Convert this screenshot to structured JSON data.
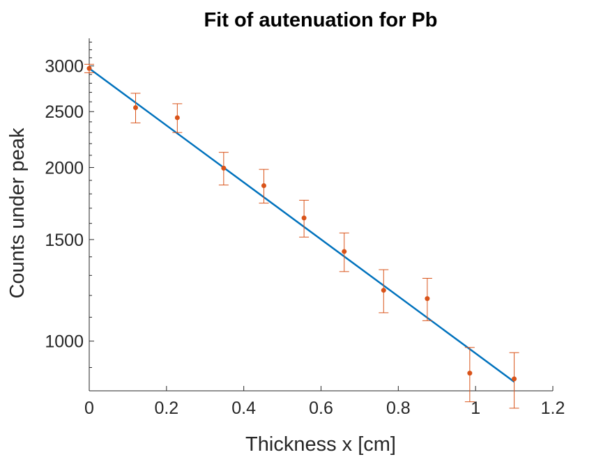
{
  "chart_data": {
    "type": "scatter",
    "title": "Fit of autenuation for Pb",
    "xlabel": "Thickness x [cm]",
    "ylabel": "Counts under peak",
    "xlim": [
      0,
      1.2
    ],
    "ylim": [
      820,
      3350
    ],
    "yscale": "log",
    "xticks": [
      "0",
      "0.2",
      "0.4",
      "0.6",
      "0.8",
      "1",
      "1.2"
    ],
    "xtick_values": [
      0,
      0.2,
      0.4,
      0.6,
      0.8,
      1,
      1.2
    ],
    "yticks": [
      "1000",
      "1500",
      "2000",
      "2500",
      "3000"
    ],
    "ytick_values": [
      1000,
      1500,
      2000,
      2500,
      3000
    ],
    "grid": false,
    "series": [
      {
        "kind": "errorbar",
        "color": "#D95319",
        "x": [
          0,
          0.12,
          0.228,
          0.348,
          0.452,
          0.556,
          0.66,
          0.762,
          0.875,
          0.985,
          1.1
        ],
        "y": [
          2970,
          2540,
          2440,
          1995,
          1860,
          1635,
          1430,
          1225,
          1185,
          880,
          860
        ],
        "yerr": [
          50,
          150,
          140,
          130,
          125,
          120,
          110,
          105,
          100,
          95,
          95
        ]
      },
      {
        "kind": "fit-line",
        "color": "#0072BD",
        "x": [
          0,
          1.1
        ],
        "y": [
          2970,
          850
        ]
      }
    ]
  }
}
